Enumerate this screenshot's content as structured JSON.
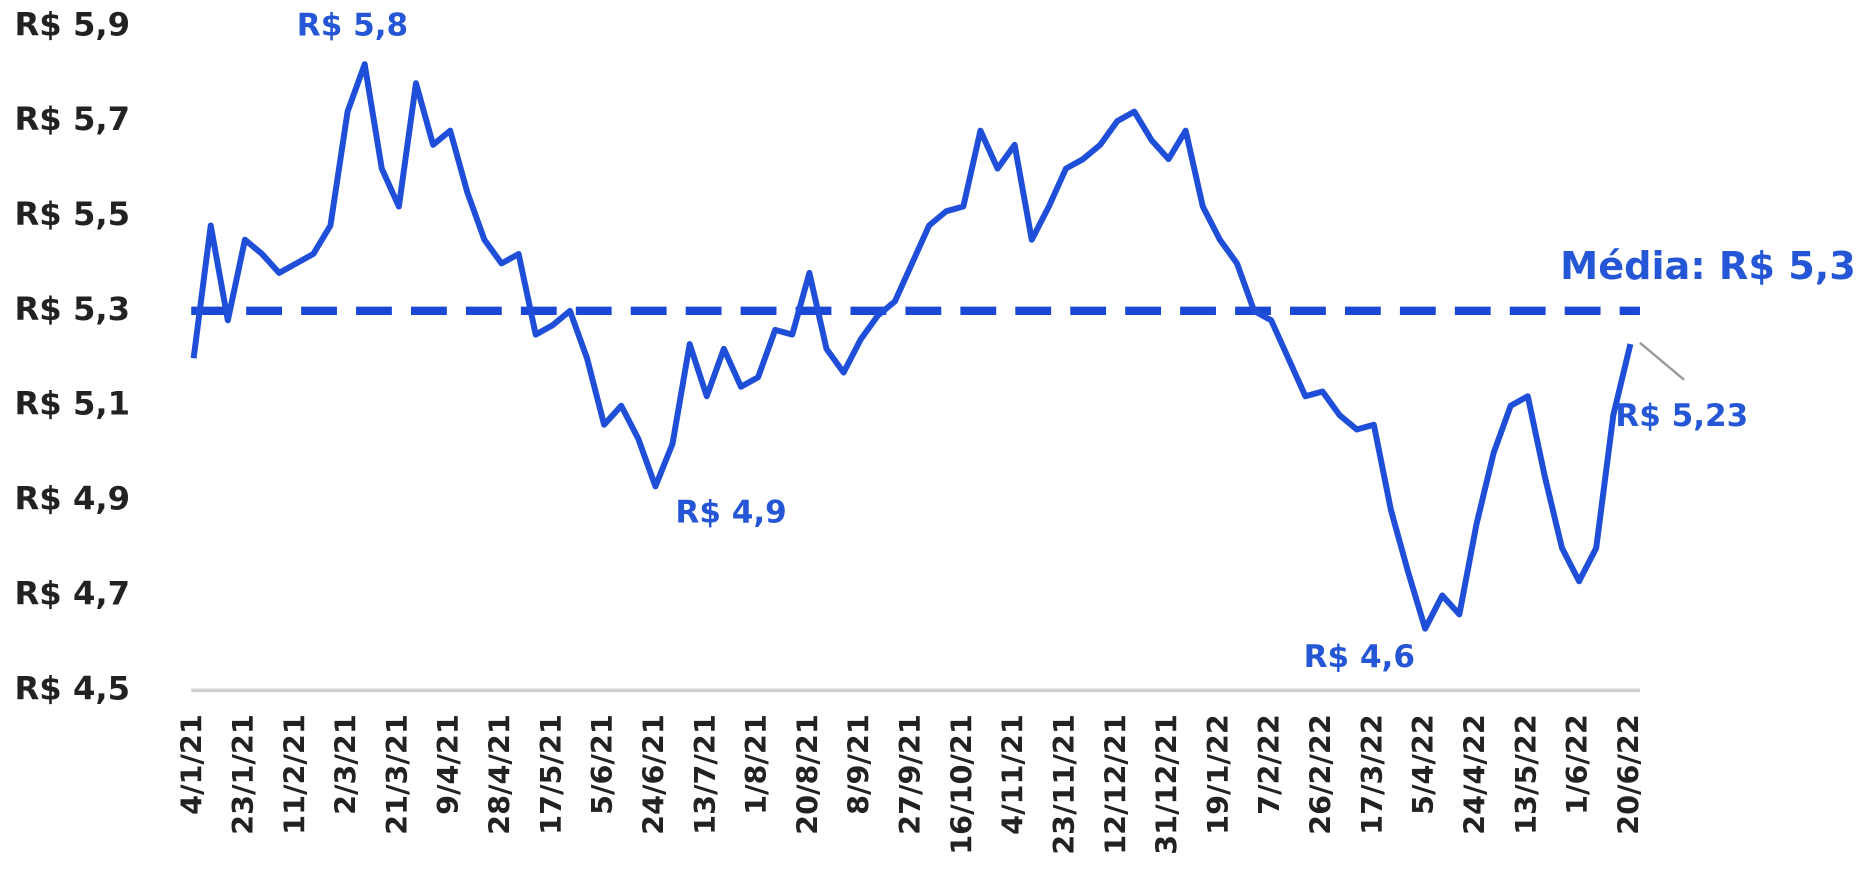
{
  "chart_data": {
    "type": "line",
    "categories": [
      "4/1/21",
      null,
      null,
      "23/1/21",
      null,
      null,
      "11/2/21",
      null,
      null,
      "2/3/21",
      null,
      null,
      "21/3/21",
      null,
      null,
      "9/4/21",
      null,
      null,
      "28/4/21",
      null,
      null,
      "17/5/21",
      null,
      null,
      "5/6/21",
      null,
      null,
      "24/6/21",
      null,
      null,
      "13/7/21",
      null,
      null,
      "1/8/21",
      null,
      null,
      "20/8/21",
      null,
      null,
      "8/9/21",
      null,
      null,
      "27/9/21",
      null,
      null,
      "16/10/21",
      null,
      null,
      "4/11/21",
      null,
      null,
      "23/11/21",
      null,
      null,
      "12/12/21",
      null,
      null,
      "31/12/21",
      null,
      null,
      "19/1/22",
      null,
      null,
      "7/2/22",
      null,
      null,
      "26/2/22",
      null,
      null,
      "17/3/22",
      null,
      null,
      "5/4/22",
      null,
      null,
      "24/4/22",
      null,
      null,
      "13/5/22",
      null,
      null,
      "1/6/22",
      null,
      null,
      "20/6/22"
    ],
    "series": [
      {
        "color": "#1f4fd8",
        "values": [
          5.2,
          5.48,
          5.28,
          5.45,
          5.42,
          5.38,
          5.4,
          5.42,
          5.48,
          5.72,
          5.82,
          5.6,
          5.52,
          5.78,
          5.65,
          5.68,
          5.55,
          5.45,
          5.4,
          5.42,
          5.25,
          5.27,
          5.3,
          5.2,
          5.06,
          5.1,
          5.03,
          4.93,
          5.02,
          5.23,
          5.12,
          5.22,
          5.14,
          5.16,
          5.26,
          5.25,
          5.38,
          5.22,
          5.17,
          5.24,
          5.29,
          5.32,
          5.4,
          5.48,
          5.51,
          5.52,
          5.68,
          5.6,
          5.65,
          5.45,
          5.52,
          5.6,
          5.62,
          5.65,
          5.7,
          5.72,
          5.66,
          5.62,
          5.68,
          5.52,
          5.45,
          5.4,
          5.3,
          5.28,
          5.2,
          5.12,
          5.13,
          5.08,
          5.05,
          5.06,
          4.88,
          4.75,
          4.63,
          4.7,
          4.66,
          4.85,
          5.0,
          5.1,
          5.12,
          4.95,
          4.8,
          4.73,
          4.8,
          5.08,
          5.23
        ]
      }
    ],
    "mean": 5.3,
    "ylim": [
      4.5,
      5.9
    ],
    "yticks": [
      {
        "value": 4.5,
        "label": "R$ 4,5"
      },
      {
        "value": 4.7,
        "label": "R$ 4,7"
      },
      {
        "value": 4.9,
        "label": "R$ 4,9"
      },
      {
        "value": 5.1,
        "label": "R$ 5,1"
      },
      {
        "value": 5.3,
        "label": "R$ 5,3"
      },
      {
        "value": 5.5,
        "label": "R$ 5,5"
      },
      {
        "value": 5.7,
        "label": "R$ 5,7"
      },
      {
        "value": 5.9,
        "label": "R$ 5,9"
      }
    ],
    "annotations": [
      "R$ 5,8",
      "R$ 4,9",
      "R$ 4,6",
      "R$ 5,23",
      "Média: R$ 5,3"
    ]
  }
}
